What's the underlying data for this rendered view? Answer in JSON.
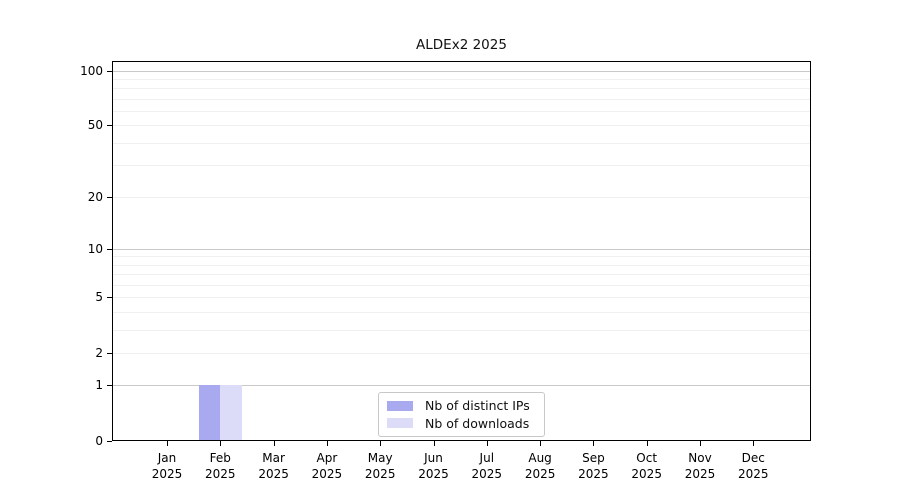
{
  "chart_data": {
    "type": "bar",
    "title": "ALDEx2 2025",
    "x_axis": {
      "months": [
        "Jan",
        "Feb",
        "Mar",
        "Apr",
        "May",
        "Jun",
        "Jul",
        "Aug",
        "Sep",
        "Oct",
        "Nov",
        "Dec"
      ],
      "year": "2025"
    },
    "y_axis": {
      "scale": "log1p",
      "ticks": [
        0,
        1,
        2,
        5,
        10,
        20,
        50,
        100
      ],
      "lim": [
        0,
        100
      ]
    },
    "series": [
      {
        "name": "Nb of distinct IPs",
        "color": "#a9a9f0",
        "values": [
          0,
          1,
          0,
          0,
          0,
          0,
          0,
          0,
          0,
          0,
          0,
          0
        ]
      },
      {
        "name": "Nb of downloads",
        "color": "#dcdcf8",
        "values": [
          0,
          1,
          0,
          0,
          0,
          0,
          0,
          0,
          0,
          0,
          0,
          0
        ]
      }
    ],
    "grid": {
      "orientation": "horizontal",
      "minor_values": [
        2,
        3,
        4,
        5,
        6,
        7,
        8,
        9,
        20,
        30,
        40,
        50,
        60,
        70,
        80,
        90
      ],
      "major_values": [
        1,
        10,
        100
      ],
      "minor_color": "#f0f0f0",
      "major_color": "#c9c9c9"
    },
    "legend": {
      "position": "bottom-center"
    },
    "axis_color": "#000000"
  }
}
